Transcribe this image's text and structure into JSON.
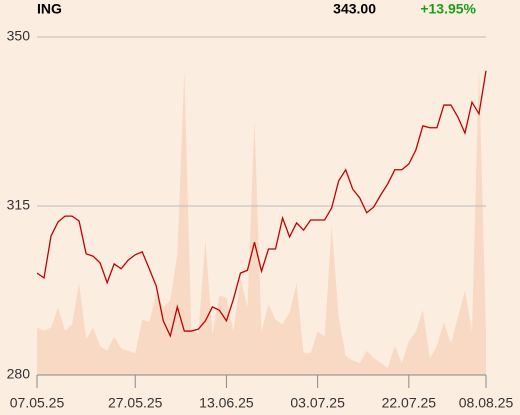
{
  "chart_data": {
    "type": "line",
    "title": "ING",
    "annotations": [
      {
        "value": 343,
        "label": "343.00",
        "color": "#000000"
      },
      {
        "value": 13.95,
        "label": "+13.95%",
        "color": "#1a9e1a"
      }
    ],
    "categories": [
      "07.05.25",
      null,
      null,
      null,
      null,
      null,
      null,
      null,
      null,
      null,
      null,
      null,
      null,
      null,
      "27.05.25",
      null,
      null,
      null,
      null,
      null,
      null,
      null,
      null,
      null,
      null,
      null,
      null,
      "13.06.25",
      null,
      null,
      null,
      null,
      null,
      null,
      null,
      null,
      null,
      null,
      null,
      null,
      "03.07.25",
      null,
      null,
      null,
      null,
      null,
      null,
      null,
      null,
      null,
      null,
      null,
      null,
      "22.07.25",
      null,
      null,
      null,
      null,
      null,
      null,
      null,
      null,
      null,
      null,
      "08.08.25"
    ],
    "series": [
      {
        "type": "area",
        "color": "#f8dac4",
        "values": [
          289.8,
          289.2,
          289.8,
          294,
          289.2,
          290.5,
          299,
          287.5,
          289.8,
          286,
          285,
          288,
          285.5,
          285,
          284.5,
          291.5,
          291,
          297,
          294,
          295.5,
          305,
          343,
          289.5,
          288.5,
          308,
          288.5,
          296.5,
          296,
          289,
          300,
          294,
          333,
          289,
          294.7,
          291.5,
          290.5,
          293,
          299,
          284.5,
          284.5,
          289,
          288,
          311,
          292,
          284,
          283,
          282.5,
          285,
          283.5,
          282.5,
          281.5,
          286,
          282.5,
          287,
          289,
          293.5,
          283.5,
          286,
          291,
          286.5,
          292,
          297.5,
          289,
          344,
          289
        ]
      },
      {
        "type": "line",
        "color": "#c00000",
        "values": [
          301.1,
          300.1,
          308.8,
          311.7,
          312.9,
          312.9,
          311.9,
          305.1,
          304.6,
          303.2,
          299.1,
          303.0,
          302.0,
          303.8,
          304.9,
          305.5,
          302.0,
          298.4,
          291.2,
          288.1,
          294.1,
          289.1,
          289.1,
          289.5,
          291.2,
          294.1,
          293.4,
          291.2,
          295.7,
          301.1,
          301.7,
          307.5,
          301.5,
          306.1,
          306.1,
          312.5,
          308.6,
          311.5,
          310.0,
          312.1,
          312.1,
          312.1,
          314.6,
          320.2,
          322.5,
          318.5,
          316.7,
          313.6,
          314.8,
          317.3,
          319.6,
          322.5,
          322.5,
          323.7,
          326.6,
          331.6,
          331.2,
          331.2,
          335.9,
          335.9,
          333.4,
          330.1,
          336.5,
          334.1,
          343.0
        ]
      }
    ],
    "ylim": [
      280,
      350
    ],
    "yticks": [
      280,
      315,
      350
    ],
    "grid": true
  }
}
